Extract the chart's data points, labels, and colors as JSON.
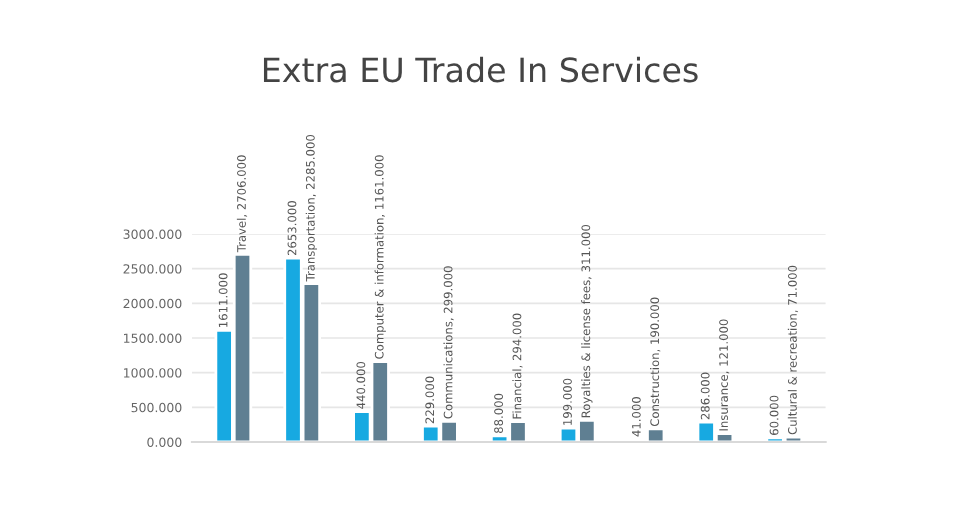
{
  "chart_data": {
    "type": "bar",
    "title": "Extra EU Trade In Services",
    "categories": [
      null,
      null,
      null,
      null,
      null,
      null,
      null,
      null,
      null
    ],
    "series": [
      {
        "color": "#17a9e1",
        "values": [
          1611,
          2653,
          440,
          229,
          88,
          199,
          41,
          286,
          60
        ],
        "value_labels": [
          "1611.000",
          "2653.000",
          "440.000",
          "229.000",
          "88.000",
          "199.000",
          "41.000",
          "286.000",
          "60.000"
        ]
      },
      {
        "color": "#5f7f92",
        "values": [
          2706,
          2285,
          1161,
          299,
          294,
          311,
          190,
          121,
          71
        ],
        "value_labels": [
          "Travel, 2706.000",
          "Transportation, 2285.000",
          "Computer & information, 1161.000",
          "Communications, 299.000",
          "Financial, 294.000",
          "Royalties & license fees, 311.000",
          "Construction, 190.000",
          "Insurance, 121.000",
          "Cultural & recreation, 71.000"
        ]
      }
    ],
    "ylim": [
      0,
      3000
    ],
    "yticks": [
      {
        "value": 0,
        "label": "0.000"
      },
      {
        "value": 500,
        "label": "500.000"
      },
      {
        "value": 1000,
        "label": "1000.000"
      },
      {
        "value": 1500,
        "label": "1500.000"
      },
      {
        "value": 2000,
        "label": "2000.000"
      },
      {
        "value": 2500,
        "label": "2500.000"
      },
      {
        "value": 3000,
        "label": "3000.000"
      }
    ],
    "grid": "y"
  }
}
